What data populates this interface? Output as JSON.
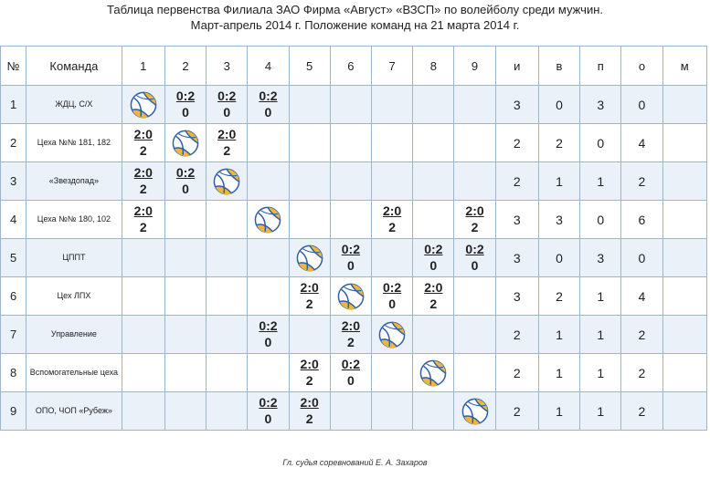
{
  "title": {
    "line1": "Таблица первенства Филиала ЗАО Фирма «Август» «ВЗСП» по волейболу среди мужчин.",
    "line2": "Март-апрель 2014 г. Положение команд на 21 марта 2014 г."
  },
  "headers": {
    "num": "№",
    "team": "Команда",
    "rounds": [
      "1",
      "2",
      "3",
      "4",
      "5",
      "6",
      "7",
      "8",
      "9"
    ],
    "stats": [
      "и",
      "в",
      "п",
      "о",
      "м"
    ]
  },
  "rows": [
    {
      "num": "1",
      "team": "ЖДЦ, С/Х",
      "cells": [
        "ball",
        "0:2|0",
        "0:2|0",
        "0:2|0",
        "",
        "",
        "",
        "",
        ""
      ],
      "stats": [
        "3",
        "0",
        "3",
        "0",
        ""
      ]
    },
    {
      "num": "2",
      "team": "Цеха №№ 181, 182",
      "cells": [
        "2:0|2",
        "ball",
        "2:0|2",
        "",
        "",
        "",
        "",
        "",
        ""
      ],
      "stats": [
        "2",
        "2",
        "0",
        "4",
        ""
      ]
    },
    {
      "num": "3",
      "team": "«Звездопад»",
      "cells": [
        "2:0|2",
        "0:2|0",
        "ball",
        "",
        "",
        "",
        "",
        "",
        ""
      ],
      "stats": [
        "2",
        "1",
        "1",
        "2",
        ""
      ]
    },
    {
      "num": "4",
      "team": "Цеха №№ 180, 102",
      "cells": [
        "2:0|2",
        "",
        "",
        "ball",
        "",
        "",
        "2:0|2",
        "",
        "2:0|2"
      ],
      "stats": [
        "3",
        "3",
        "0",
        "6",
        ""
      ]
    },
    {
      "num": "5",
      "team": "ЦППТ",
      "cells": [
        "",
        "",
        "",
        "",
        "ball",
        "0:2|0",
        "",
        "0:2|0",
        "0:2|0"
      ],
      "stats": [
        "3",
        "0",
        "3",
        "0",
        ""
      ]
    },
    {
      "num": "6",
      "team": "Цех ЛПХ",
      "cells": [
        "",
        "",
        "",
        "",
        "2:0|2",
        "ball",
        "0:2|0",
        "2:0|2",
        ""
      ],
      "stats": [
        "3",
        "2",
        "1",
        "4",
        ""
      ]
    },
    {
      "num": "7",
      "team": "Управление",
      "cells": [
        "",
        "",
        "",
        "0:2|0",
        "",
        "2:0|2",
        "ball",
        "",
        ""
      ],
      "stats": [
        "2",
        "1",
        "1",
        "2",
        ""
      ]
    },
    {
      "num": "8",
      "team": "Вспомогательные цеха",
      "cells": [
        "",
        "",
        "",
        "",
        "2:0|2",
        "0:2|0",
        "",
        "ball",
        ""
      ],
      "stats": [
        "2",
        "1",
        "1",
        "2",
        ""
      ]
    },
    {
      "num": "9",
      "team": "ОПО, ЧОП «Рубеж»",
      "cells": [
        "",
        "",
        "",
        "0:2|0",
        "2:0|2",
        "",
        "",
        "",
        "ball"
      ],
      "stats": [
        "2",
        "1",
        "1",
        "2",
        ""
      ]
    }
  ],
  "icons": {
    "ball": "volleyball-icon"
  },
  "colors": {
    "border": "#9bb7cf",
    "row_alt": "#eaf1f9",
    "ball_blue": "#2f5fa8",
    "ball_yellow": "#f0b63a"
  },
  "footer": {
    "signature": "Гл. судья соревнований  Е. А. Захаров"
  }
}
